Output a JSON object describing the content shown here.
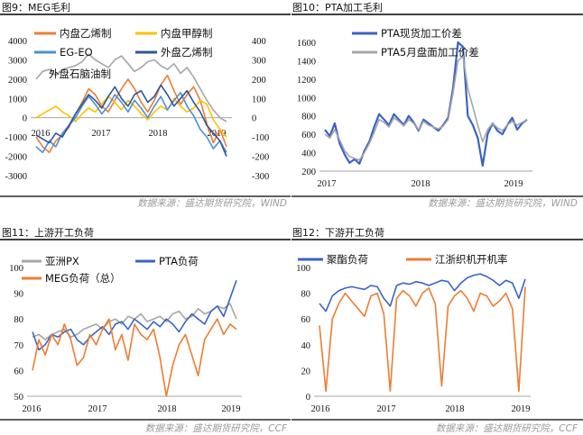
{
  "chart_data": [
    {
      "type": "line",
      "title": "图9：MEG毛利",
      "x_ticks": [
        "2016",
        "2017",
        "2018",
        "2019"
      ],
      "y_left_ticks": [
        "4000",
        "3000",
        "2000",
        "1000",
        "0",
        "-1000",
        "-2000",
        "-3000"
      ],
      "y_right_ticks": [
        "400",
        "300",
        "200",
        "100",
        "0",
        "-100",
        "-200",
        "-300"
      ],
      "y_left_lim": [
        -3000,
        4000
      ],
      "y_right_lim": [
        -300,
        400
      ],
      "legend": [
        "内盘乙烯制",
        "内盘甲醇制",
        "EG-EO",
        "外盘乙烯制",
        "外盘石脑油制"
      ],
      "series": [
        {
          "name": "内盘乙烯制",
          "color": "#ED7D31",
          "axis": "left",
          "values": [
            -1000,
            -1500,
            -1800,
            -1200,
            -900,
            -500,
            200,
            800,
            1500,
            1200,
            600,
            300,
            900,
            1500,
            2000,
            1500,
            800,
            300,
            900,
            1700,
            2200,
            1400,
            700,
            1200,
            1600,
            900,
            -300,
            -1300,
            -600,
            -1500
          ]
        },
        {
          "name": "内盘甲醇制",
          "color": "#FFC000",
          "axis": "left",
          "values": [
            0,
            200,
            400,
            600,
            300,
            100,
            -200,
            200,
            500,
            300,
            700,
            1100,
            800,
            400,
            900,
            600,
            200,
            -100,
            300,
            600,
            400,
            1000,
            600,
            300,
            500,
            900,
            700,
            -100,
            -600,
            -1000
          ]
        },
        {
          "name": "EG-EO",
          "color": "#4A90D9",
          "axis": "left",
          "values": [
            -1500,
            -1800,
            -1200,
            -1500,
            -800,
            -400,
            0,
            600,
            1100,
            700,
            200,
            600,
            1200,
            800,
            300,
            900,
            500,
            0,
            600,
            1100,
            400,
            900,
            1300,
            600,
            100,
            -600,
            -1000,
            -1600,
            -1200,
            -1800
          ]
        },
        {
          "name": "外盘乙烯制",
          "color": "#2F55A4",
          "axis": "right",
          "values": [
            -90,
            -110,
            -130,
            -80,
            -100,
            -40,
            20,
            70,
            120,
            90,
            50,
            110,
            160,
            100,
            60,
            120,
            140,
            80,
            110,
            170,
            120,
            60,
            100,
            140,
            80,
            30,
            -40,
            -80,
            -120,
            -200
          ]
        },
        {
          "name": "外盘石脑油制",
          "color": "#A6A6A6",
          "axis": "right",
          "values": [
            200,
            240,
            250,
            220,
            250,
            260,
            270,
            290,
            330,
            300,
            280,
            260,
            300,
            320,
            280,
            240,
            260,
            290,
            300,
            270,
            250,
            280,
            230,
            260,
            210,
            150,
            90,
            40,
            0,
            -20
          ]
        }
      ]
    },
    {
      "type": "line",
      "title": "图10：PTA加工毛利",
      "x_ticks": [
        "2017",
        "2018",
        "2019"
      ],
      "y_ticks": [
        "1600",
        "1400",
        "1200",
        "1000",
        "800",
        "600",
        "400",
        "200"
      ],
      "y_lim": [
        200,
        1600
      ],
      "legend": [
        "PTA现货加工价差",
        "PTA5月盘面加工价差"
      ],
      "series": [
        {
          "name": "PTA现货加工价差",
          "color": "#3A63C8",
          "values": [
            650,
            580,
            720,
            500,
            380,
            290,
            330,
            280,
            420,
            520,
            680,
            820,
            760,
            700,
            820,
            760,
            700,
            800,
            730,
            640,
            760,
            720,
            680,
            640,
            700,
            780,
            1100,
            1600,
            1550,
            800,
            700,
            560,
            260,
            600,
            720,
            640,
            600,
            700,
            780,
            650,
            720,
            760
          ]
        },
        {
          "name": "PTA5月盘面加工价差",
          "color": "#A6A6A6",
          "values": [
            600,
            560,
            650,
            540,
            420,
            360,
            340,
            320,
            400,
            500,
            620,
            760,
            730,
            680,
            780,
            740,
            690,
            760,
            720,
            650,
            740,
            700,
            680,
            660,
            690,
            760,
            1050,
            1400,
            1450,
            1100,
            900,
            700,
            520,
            650,
            720,
            670,
            640,
            700,
            740,
            700,
            730,
            760
          ]
        }
      ]
    },
    {
      "type": "line",
      "title": "图11：上游开工负荷",
      "x_ticks": [
        "2016",
        "2017",
        "2018",
        "2019"
      ],
      "y_ticks": [
        "100",
        "90",
        "80",
        "70",
        "60",
        "50"
      ],
      "y_lim": [
        50,
        100
      ],
      "legend": [
        "亚洲PX",
        "PTA负荷",
        "MEG负荷（总）"
      ],
      "series": [
        {
          "name": "亚洲PX",
          "color": "#A6A6A6",
          "values": [
            73,
            74,
            72,
            74,
            75,
            76,
            73,
            74,
            76,
            77,
            78,
            76,
            79,
            80,
            78,
            81,
            80,
            82,
            79,
            80,
            81,
            79,
            82,
            83,
            80,
            81,
            84,
            82,
            83,
            85,
            84,
            86,
            80
          ]
        },
        {
          "name": "PTA负荷",
          "color": "#3A63C8",
          "values": [
            75,
            68,
            70,
            74,
            73,
            75,
            76,
            72,
            70,
            73,
            75,
            77,
            74,
            78,
            79,
            76,
            80,
            78,
            76,
            79,
            77,
            80,
            78,
            75,
            79,
            82,
            80,
            78,
            83,
            85,
            81,
            88,
            95
          ]
        },
        {
          "name": "MEG负荷（总）",
          "color": "#ED7D31",
          "values": [
            60,
            72,
            66,
            74,
            70,
            78,
            72,
            62,
            65,
            74,
            70,
            76,
            80,
            68,
            74,
            64,
            78,
            74,
            72,
            76,
            65,
            50,
            62,
            70,
            74,
            66,
            58,
            72,
            76,
            80,
            74,
            78,
            76
          ]
        }
      ]
    },
    {
      "type": "line",
      "title": "图12：下游开工负荷",
      "x_ticks": [
        "2016",
        "2017",
        "2018",
        "2019"
      ],
      "y_ticks": [
        "100",
        "80",
        "60",
        "40",
        "20",
        "0"
      ],
      "y_lim": [
        0,
        100
      ],
      "legend": [
        "聚酯负荷",
        "江浙织机开机率"
      ],
      "series": [
        {
          "name": "聚酯负荷",
          "color": "#3A63C8",
          "values": [
            72,
            66,
            78,
            82,
            84,
            85,
            84,
            83,
            86,
            85,
            76,
            70,
            86,
            88,
            87,
            89,
            88,
            86,
            88,
            90,
            89,
            82,
            88,
            92,
            94,
            95,
            93,
            90,
            86,
            90,
            88,
            76,
            91
          ]
        },
        {
          "name": "江浙织机开机率",
          "color": "#ED7D31",
          "values": [
            55,
            4,
            60,
            72,
            80,
            74,
            68,
            62,
            78,
            80,
            64,
            4,
            76,
            82,
            78,
            70,
            80,
            84,
            72,
            8,
            70,
            78,
            82,
            76,
            66,
            80,
            78,
            70,
            74,
            80,
            68,
            4,
            85
          ]
        }
      ]
    }
  ],
  "sources": {
    "top_left": "数据来源：盛达期货研究院，WIND",
    "top_right": "数据来源：盛达期货研究院，WIND",
    "bottom_left": "数据来源：盛达期货研究院，CCF",
    "bottom_right": "数据来源：盛达期货研究院，CCF"
  }
}
